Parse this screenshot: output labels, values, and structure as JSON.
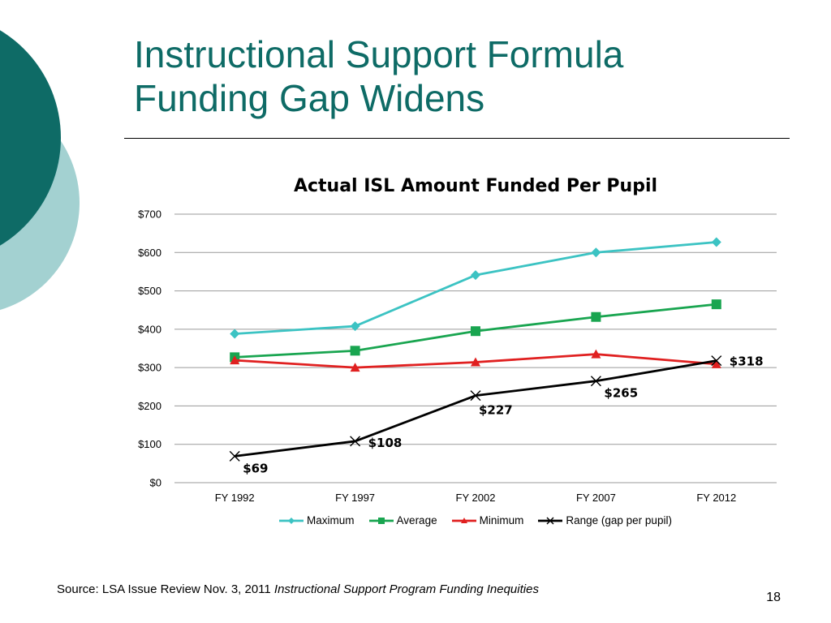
{
  "slide": {
    "title_line1": "Instructional Support Formula",
    "title_line2": "Funding Gap Widens",
    "source_prefix": "Source:  LSA Issue Review Nov. 3, 2011 ",
    "source_italic": "Instructional Support Program Funding Inequities",
    "page_number": "18"
  },
  "colors": {
    "title": "#0e6b66",
    "decor_dark": "#0e6b66",
    "decor_light": "#a3d1d1"
  },
  "chart_data": {
    "type": "line",
    "title": "Actual ISL Amount Funded Per Pupil",
    "categories": [
      "FY 1992",
      "FY 1997",
      "FY 2002",
      "FY 2007",
      "FY 2012"
    ],
    "ylim": [
      0,
      700
    ],
    "yticks": [
      0,
      100,
      200,
      300,
      400,
      500,
      600,
      700
    ],
    "ytick_labels": [
      "$0",
      "$100",
      "$200",
      "$300",
      "$400",
      "$500",
      "$600",
      "$700"
    ],
    "grid": true,
    "legend_position": "bottom",
    "series": [
      {
        "name": "Maximum",
        "values": [
          388,
          408,
          541,
          600,
          627
        ],
        "color": "#3cc3c3",
        "marker": "diamond"
      },
      {
        "name": "Average",
        "values": [
          327,
          344,
          395,
          432,
          465
        ],
        "color": "#19a550",
        "marker": "square"
      },
      {
        "name": "Minimum",
        "values": [
          319,
          300,
          314,
          335,
          309
        ],
        "color": "#e02020",
        "marker": "triangle"
      },
      {
        "name": "Range (gap per pupil)",
        "values": [
          69,
          108,
          227,
          265,
          318
        ],
        "color": "#000000",
        "marker": "x",
        "data_labels": [
          "$69",
          "$108",
          "$227",
          "$265",
          "$318"
        ]
      }
    ]
  }
}
